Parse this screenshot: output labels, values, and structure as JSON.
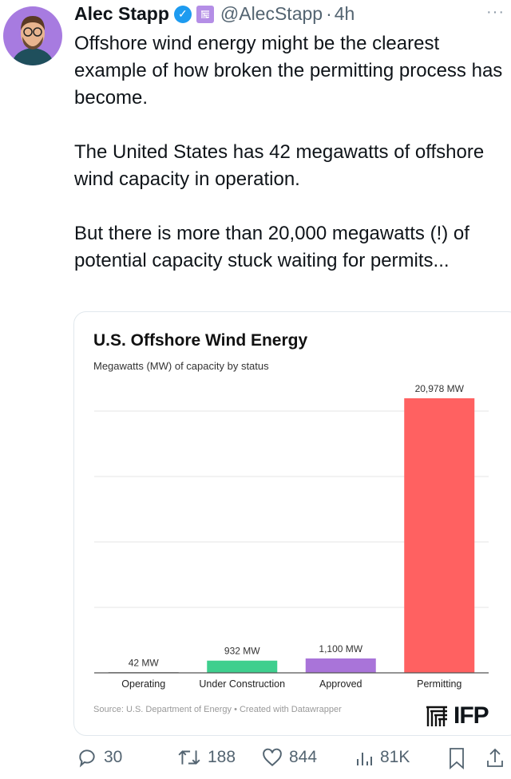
{
  "tweet": {
    "author": "Alec Stapp",
    "handle": "@AlecStapp",
    "separator": "·",
    "time": "4h",
    "more": "···",
    "text": "Offshore wind energy might be the clearest example of how broken the permitting process has become.\n\nThe United States has 42 megawatts of offshore wind capacity in operation.\n\nBut there is more than 20,000 megawatts (!) of potential capacity stuck waiting for permits..."
  },
  "card": {
    "source": "Source: U.S. Department of Energy • Created with Datawrapper",
    "logo_text": "IFP"
  },
  "chart_data": {
    "type": "bar",
    "title": "U.S. Offshore Wind Energy",
    "subtitle": "Megawatts (MW) of capacity by status",
    "categories": [
      "Operating",
      "Under Construction",
      "Approved",
      "Permitting"
    ],
    "values": [
      42,
      932,
      1100,
      20978
    ],
    "data_labels": [
      "42 MW",
      "932 MW",
      "1,100 MW",
      "20,978 MW"
    ],
    "colors": [
      "#333333",
      "#3ecf8e",
      "#a974d9",
      "#ff6161"
    ],
    "ylim": [
      0,
      20978
    ],
    "grid": true,
    "gridlines": [
      5000,
      10000,
      15000,
      20000
    ]
  },
  "actions": {
    "replies": "30",
    "reposts": "188",
    "likes": "844",
    "views": "81K"
  }
}
